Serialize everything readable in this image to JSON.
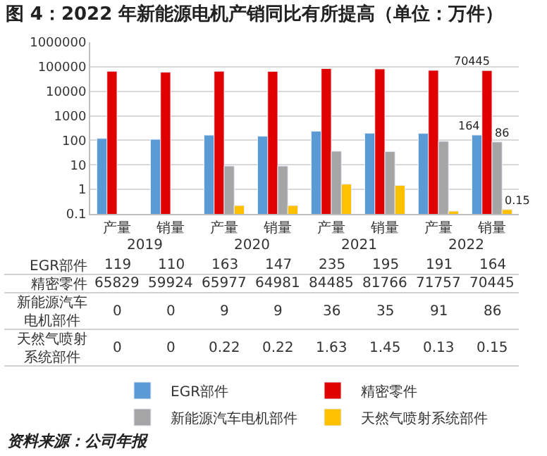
{
  "chart_data": {
    "type": "bar",
    "title": "图 4：2022 年新能源电机产销同比有所提高（单位：万件）",
    "categories": [
      "产量",
      "销量",
      "产量",
      "销量",
      "产量",
      "销量",
      "产量",
      "销量"
    ],
    "annotations": [
      "2019",
      "2020",
      "2021",
      "2022",
      "资料来源：公司年报"
    ],
    "series": [
      {
        "name": "EGR部件",
        "color": "#5b9bd5",
        "values": [
          119,
          110,
          163,
          147,
          235,
          195,
          191,
          164
        ],
        "value_labels": [
          "119",
          "110",
          "163",
          "147",
          "235",
          "195",
          "191",
          "164"
        ]
      },
      {
        "name": "精密零件",
        "color": "#e00000",
        "values": [
          65829,
          59924,
          65977,
          64981,
          84485,
          81766,
          71757,
          70445
        ],
        "value_labels": [
          "65829",
          "59924",
          "65977",
          "64981",
          "84485",
          "81766",
          "71757",
          "70445"
        ]
      },
      {
        "name": "新能源汽车电机部件",
        "color": "#a5a5a5",
        "values": [
          null,
          null,
          9,
          9,
          36,
          35,
          91,
          86
        ],
        "value_labels": [
          "0",
          "0",
          "9",
          "9",
          "36",
          "35",
          "91",
          "86"
        ]
      },
      {
        "name": "天然气喷射系统部件",
        "color": "#ffc000",
        "values": [
          null,
          null,
          0.22,
          0.22,
          1.63,
          1.45,
          0.13,
          0.15
        ],
        "value_labels": [
          "0",
          "0",
          "0.22",
          "0.22",
          "1.63",
          "1.45",
          "0.13",
          "0.15"
        ]
      }
    ],
    "log": true,
    "ylim": [
      0.1,
      1000000
    ],
    "yticks": [
      0.1,
      1,
      10,
      100,
      1000,
      10000,
      100000,
      {
        "value": 1000000,
        "label": "1000000"
      }
    ],
    "grid": "y",
    "legend": "bottom"
  }
}
